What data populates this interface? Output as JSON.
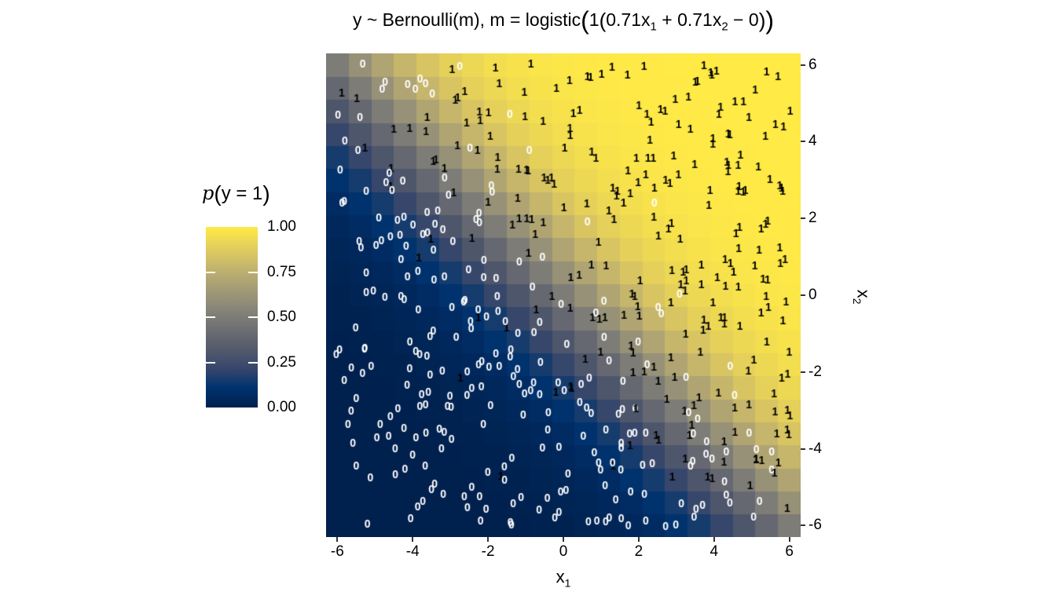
{
  "chart_data": {
    "type": "heatmap",
    "title": {
      "prefix": "y ~ Bernoulli(m), m = logistic",
      "outer_open": "(",
      "gain": "1",
      "inner_open": "(",
      "term1_base": "0.71x",
      "term1_sub": "1",
      "op_plus": " + ",
      "term2_base": "0.71x",
      "term2_sub": "2",
      "op_minus": " − ",
      "bias": "0",
      "inner_close": ")",
      "outer_close": ")"
    },
    "xlabel": {
      "base": "x",
      "sub": "1"
    },
    "ylabel": {
      "base": "x",
      "sub": "2"
    },
    "xlim": [
      -6.3,
      6.3
    ],
    "ylim": [
      -6.3,
      6.3
    ],
    "x_ticks": {
      "values": [
        -6,
        -4,
        -2,
        0,
        2,
        4,
        6
      ],
      "labels": [
        "-6",
        "-4",
        "-2",
        "0",
        "2",
        "4",
        "6"
      ]
    },
    "y_ticks": {
      "values": [
        -6,
        -4,
        -2,
        0,
        2,
        4,
        6
      ],
      "labels": [
        "-6",
        "-4",
        "-2",
        "0",
        "2",
        "4",
        "6"
      ]
    },
    "grid": {
      "cells_x": 21,
      "cells_y": 21
    },
    "model": {
      "formula": "p(y=1) = logistic(1*(0.71*x1 + 0.71*x2 - 0))",
      "gain": 1,
      "w1": 0.71,
      "w2": 0.71,
      "bias": 0
    },
    "colormap": {
      "name": "cividis",
      "stops": [
        "#00204D",
        "#00336F",
        "#39486B",
        "#575C6D",
        "#707173",
        "#8A8779",
        "#A69D75",
        "#C4B56C",
        "#E4CF5B",
        "#FFEA46"
      ]
    },
    "legend": {
      "title_italic": "p",
      "title_open": "(",
      "title_body": "y = 1",
      "title_close": ")",
      "tick_values": [
        1.0,
        0.75,
        0.5,
        0.25,
        0.0
      ],
      "tick_labels": [
        "1.00",
        "0.75",
        "0.50",
        "0.25",
        "0.00"
      ],
      "inner_tick_values": [
        0.75,
        0.5,
        0.25
      ]
    },
    "points": {
      "count": 520,
      "seed": 9,
      "x_range": [
        -6.05,
        6.05
      ],
      "y_range": [
        -6.05,
        6.05
      ],
      "label_one": "1",
      "label_zero": "0",
      "color_one": "#000000",
      "color_zero": "#FFFFFF"
    }
  }
}
